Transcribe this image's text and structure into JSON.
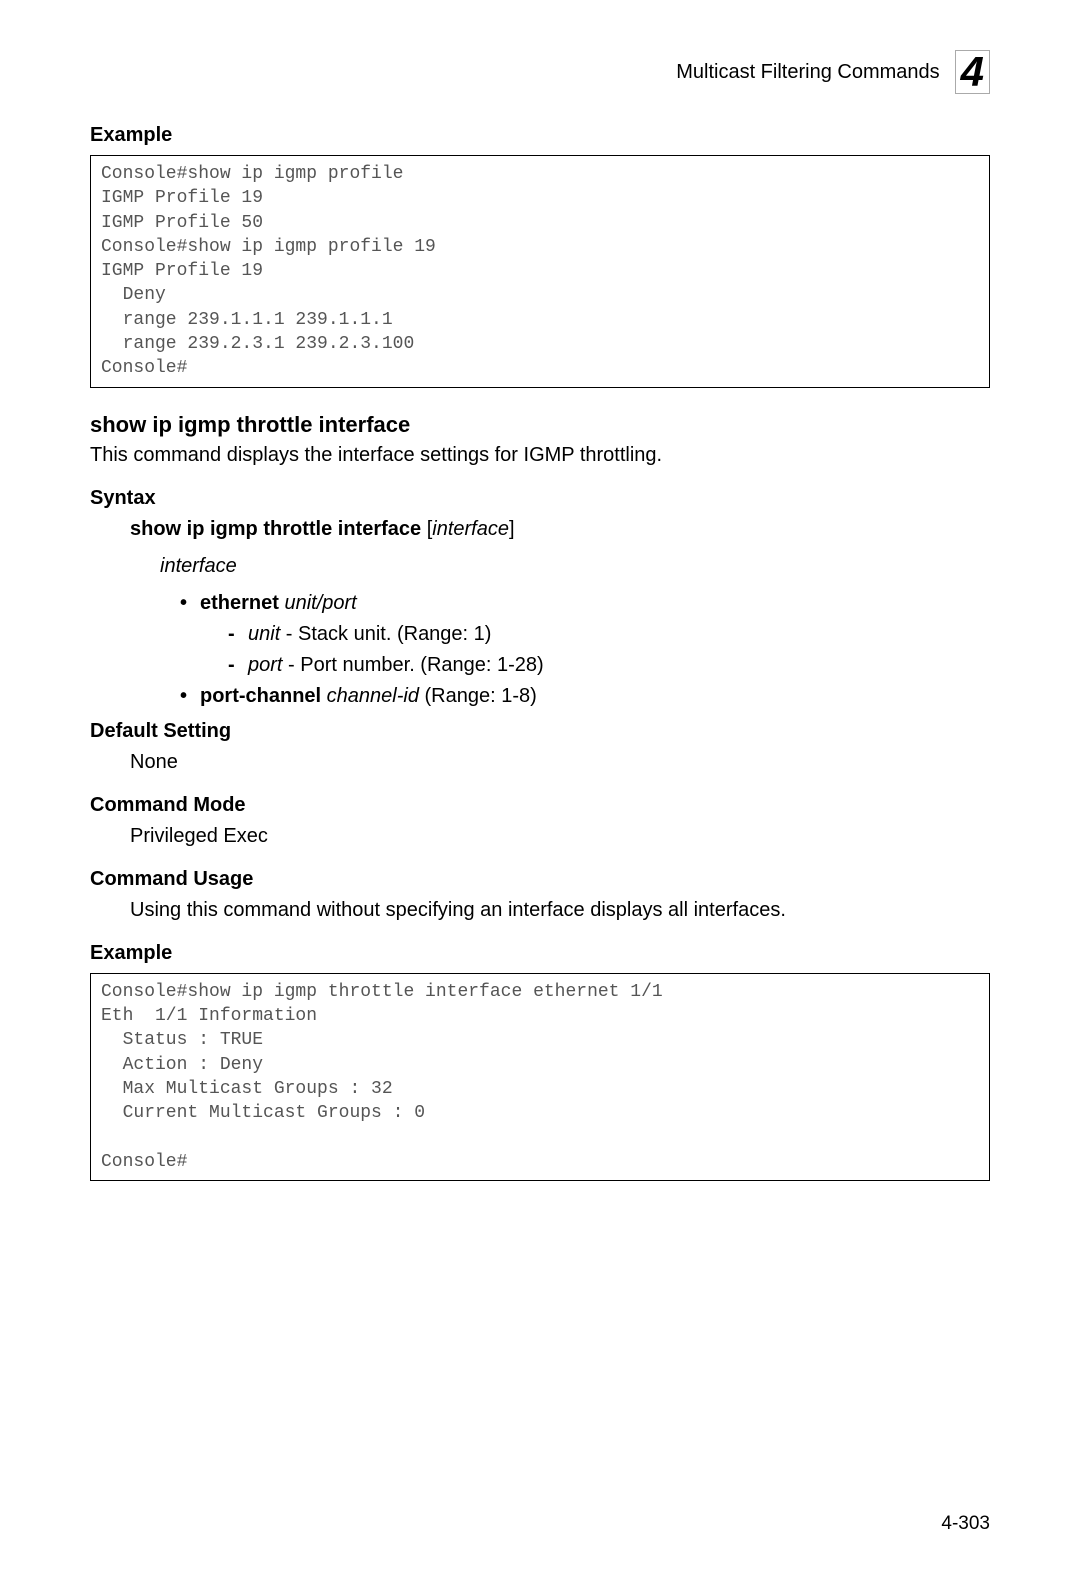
{
  "header": {
    "title": "Multicast Filtering Commands",
    "chapter": "4"
  },
  "sections": {
    "example1_heading": "Example",
    "example1_code": "Console#show ip igmp profile\nIGMP Profile 19\nIGMP Profile 50\nConsole#show ip igmp profile 19\nIGMP Profile 19\n  Deny\n  range 239.1.1.1 239.1.1.1\n  range 239.2.3.1 239.2.3.100\nConsole#",
    "command_title": "show ip igmp throttle interface",
    "command_desc": "This command displays the interface settings for IGMP throttling.",
    "syntax_heading": "Syntax",
    "syntax_cmd_bold": "show ip igmp throttle interface",
    "syntax_cmd_bracket_open": " [",
    "syntax_cmd_italic": "interface",
    "syntax_cmd_bracket_close": "]",
    "interface_word": "interface",
    "bullet_ethernet_bold": "ethernet",
    "bullet_ethernet_italic": " unit/port",
    "dash_unit_italic": "unit",
    "dash_unit_rest": " - Stack unit. (Range: 1)",
    "dash_port_italic": "port",
    "dash_port_rest": " - Port number. (Range: 1-28)",
    "bullet_pc_bold": "port-channel",
    "bullet_pc_italic": " channel-id",
    "bullet_pc_rest": " (Range: 1-8)",
    "default_heading": "Default Setting",
    "default_text": "None",
    "mode_heading": "Command Mode",
    "mode_text": "Privileged Exec",
    "usage_heading": "Command Usage",
    "usage_text": "Using this command without specifying an interface displays all interfaces.",
    "example2_heading": "Example",
    "example2_code": "Console#show ip igmp throttle interface ethernet 1/1\nEth  1/1 Information\n  Status : TRUE\n  Action : Deny\n  Max Multicast Groups : 32\n  Current Multicast Groups : 0\n\nConsole#"
  },
  "page_number": "4-303"
}
